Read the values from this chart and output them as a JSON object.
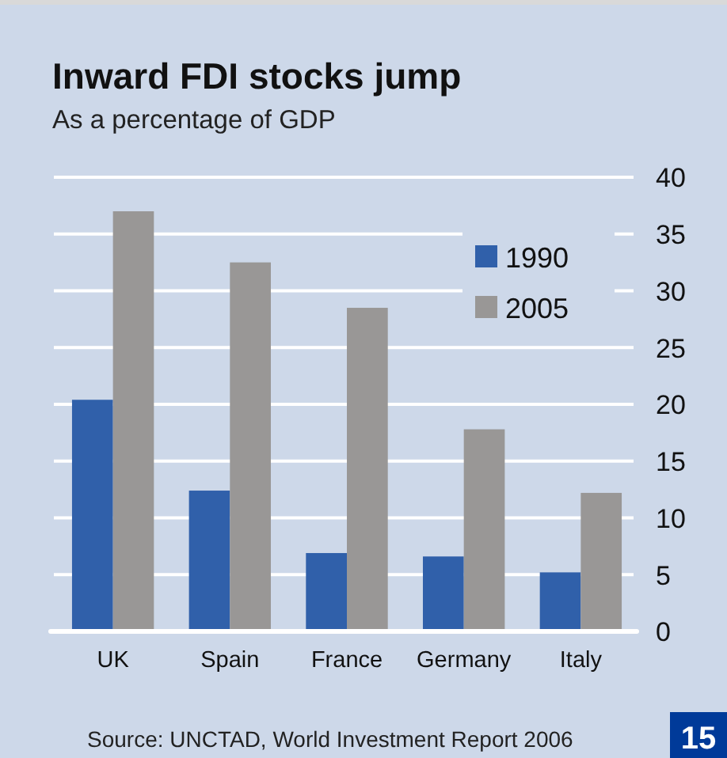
{
  "chart_data": {
    "type": "bar",
    "title": "Inward FDI stocks jump",
    "subtitle": "As a percentage of GDP",
    "categories": [
      "UK",
      "Spain",
      "France",
      "Germany",
      "Italy"
    ],
    "series": [
      {
        "name": "1990",
        "color": "#3060aa",
        "values": [
          20.4,
          12.4,
          6.9,
          6.6,
          5.2
        ]
      },
      {
        "name": "2005",
        "color": "#999796",
        "values": [
          37.0,
          32.5,
          28.5,
          17.8,
          12.2
        ]
      }
    ],
    "ylim": [
      0,
      40
    ],
    "yticks": [
      0,
      5,
      10,
      15,
      20,
      25,
      30,
      35,
      40
    ],
    "grid": "y",
    "legend": "top right",
    "annotations": [
      "Source: UNCTAD, World Investment Report 2006",
      "15"
    ]
  }
}
